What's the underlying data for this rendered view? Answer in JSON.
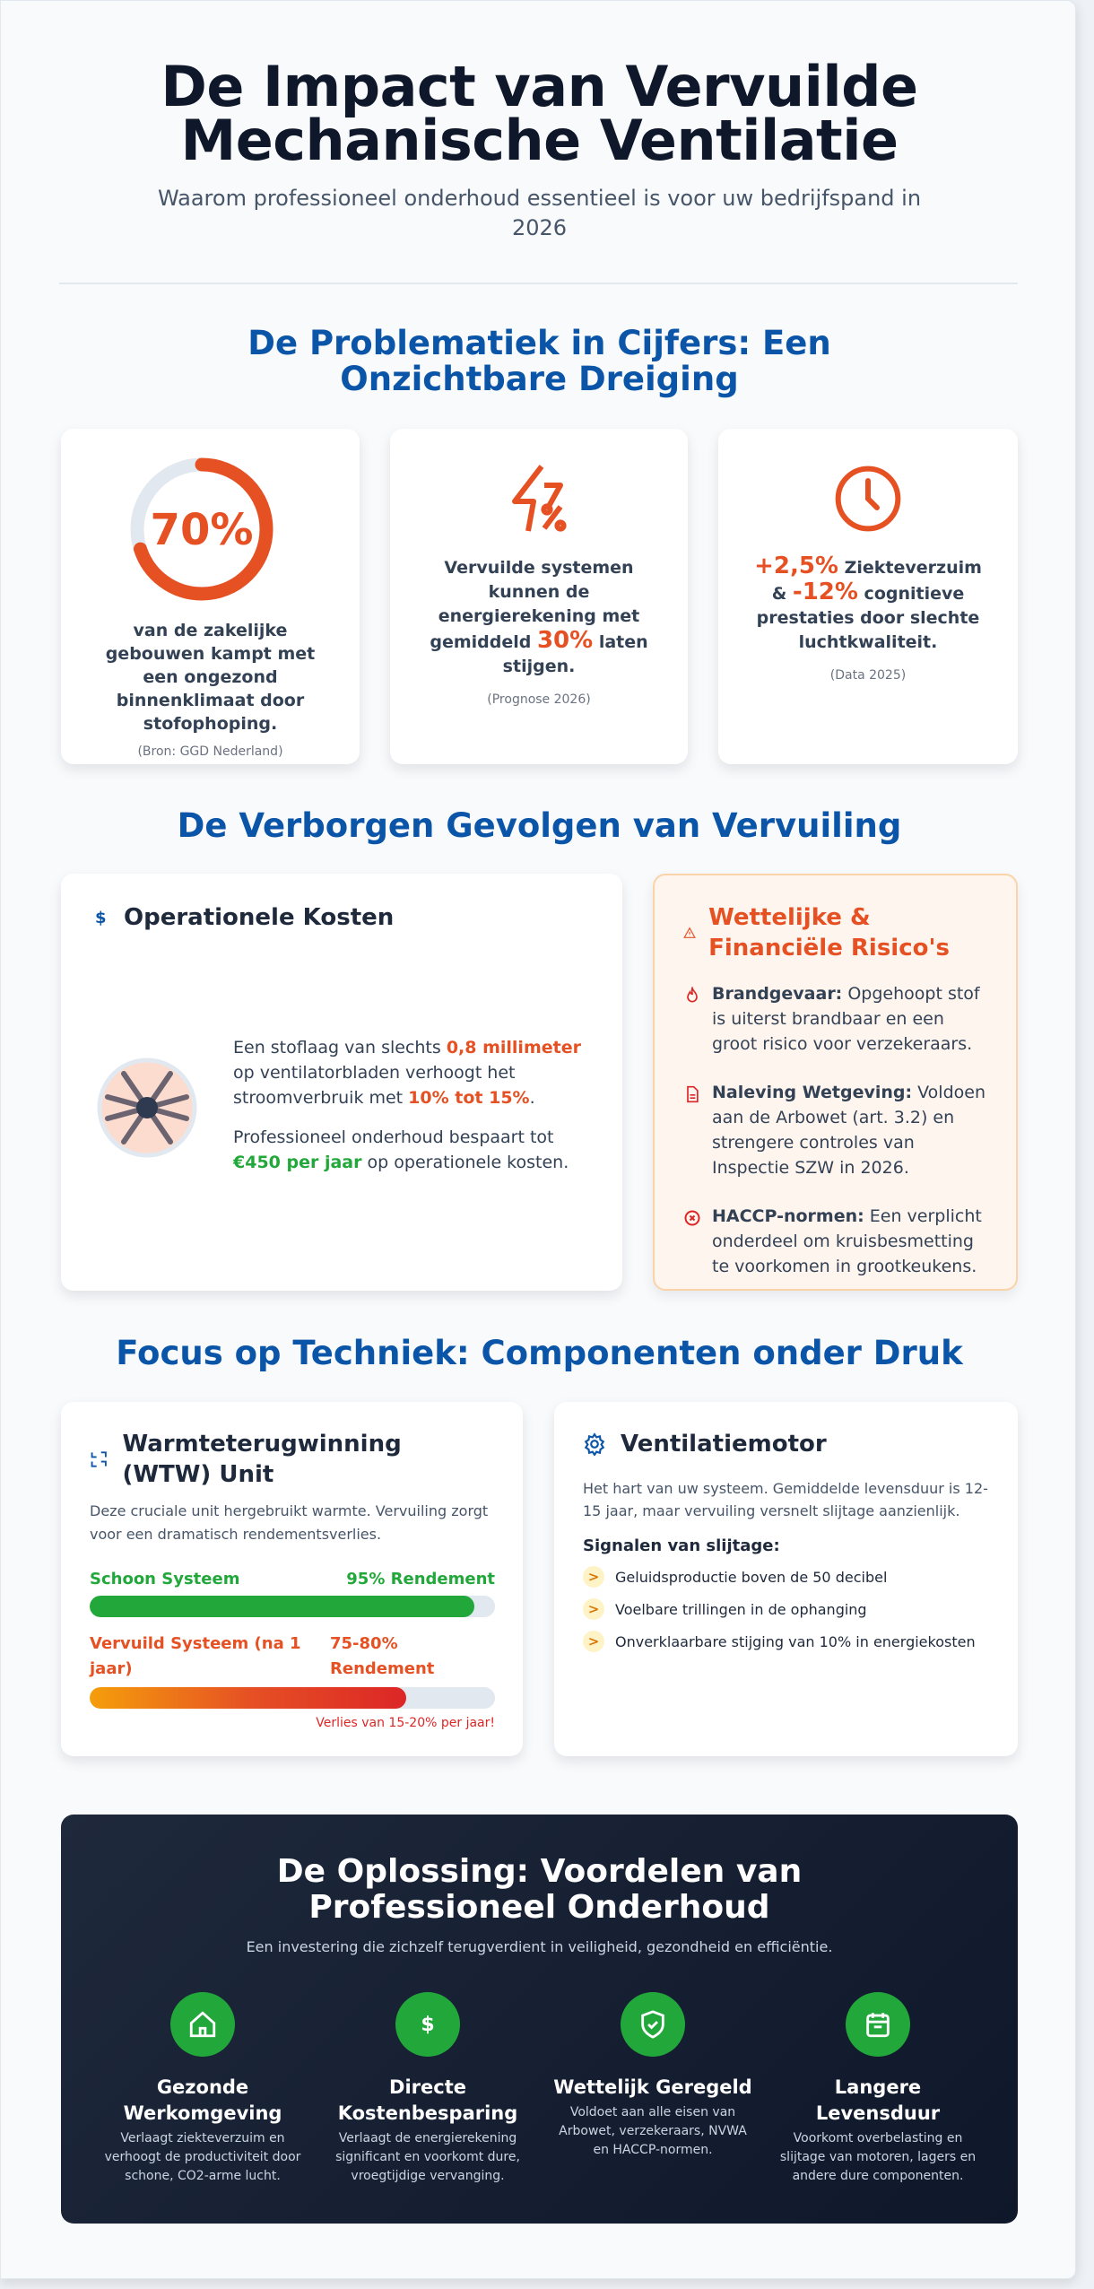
{
  "header": {
    "title": "De Impact van Vervuilde Mechanische Ventilatie",
    "subtitle": "Waarom professioneel onderhoud essentieel is voor uw bedrijfspand in 2026"
  },
  "colors": {
    "accent_orange": "#e65124",
    "heading_blue": "#0b55a8",
    "success_green": "#22a83a",
    "banner_dark": "#0f172a"
  },
  "section1": {
    "title": "De Problematiek in Cijfers: Een Onzichtbare Dreiging",
    "cards": [
      {
        "icon": "donut-70",
        "value": "70%",
        "progress": 0.7,
        "text": "van de zakelijke gebouwen kampt met een ongezond binnenklimaat door stofophoping.",
        "source": "(Bron: GGD Nederland)"
      },
      {
        "icon": "lightning-percent-icon",
        "pre": "Vervuilde systemen kunnen de energierekening met gemiddeld ",
        "value": "30%",
        "post": " laten stijgen.",
        "source": "(Prognose 2026)"
      },
      {
        "icon": "clock-icon",
        "value1": "+2,5%",
        "mid": " Ziekteverzuim & ",
        "value2": "-12%",
        "post": " cognitieve prestaties door slechte luchtkwaliteit.",
        "source": "(Data 2025)"
      }
    ]
  },
  "section2": {
    "title": "De Verborgen Gevolgen van Vervuiling",
    "costs": {
      "icon": "dollar-icon",
      "title": "Operationele Kosten",
      "p1_pre": "Een stoflaag van slechts ",
      "p1_hl1": "0,8 millimeter",
      "p1_mid": " op ventilatorbladen verhoogt het stroomverbruik met ",
      "p1_hl2": "10% tot 15%",
      "p1_post": ".",
      "p2_pre": "Professioneel onderhoud bespaart tot ",
      "p2_hl": "€450 per jaar",
      "p2_post": " op operationele kosten."
    },
    "risks": {
      "icon": "warning-icon",
      "title": "Wettelijke & Financiële Risico's",
      "items": [
        {
          "icon": "fire-icon",
          "label": "Brandgevaar:",
          "text": " Opgehoopt stof is uiterst brandbaar en een groot risico voor verzekeraars."
        },
        {
          "icon": "document-icon",
          "label": "Naleving Wetgeving:",
          "text": " Voldoen aan de Arbowet (art. 3.2) en strengere controles van Inspectie SZW in 2026."
        },
        {
          "icon": "cross-circle-icon",
          "label": "HACCP-normen:",
          "text": " Een verplicht onderdeel om kruisbesmetting te voorkomen in grootkeukens."
        }
      ]
    }
  },
  "section3": {
    "title": "Focus op Techniek: Componenten onder Druk",
    "wtw": {
      "icon": "exchange-icon",
      "title": "Warmteterugwinning (WTW) Unit",
      "desc": "Deze cruciale unit hergebruikt warmte. Vervuiling zorgt voor een dramatisch rendementsverlies.",
      "clean": {
        "label": "Schoon Systeem",
        "value": "95% Rendement",
        "percent": 95
      },
      "dirty": {
        "label": "Vervuild Systeem (na 1 jaar)",
        "value": "75-80% Rendement",
        "percent": 78
      },
      "loss": "Verlies van 15-20% per jaar!"
    },
    "motor": {
      "icon": "gear-icon",
      "title": "Ventilatiemotor",
      "desc": "Het hart van uw systeem. Gemiddelde levensduur is 12-15 jaar, maar vervuiling versnelt slijtage aanzienlijk.",
      "signals_title": "Signalen van slijtage:",
      "signals": [
        "Geluidsproductie boven de 50 decibel",
        "Voelbare trillingen in de ophanging",
        "Onverklaarbare stijging van 10% in energiekosten"
      ]
    }
  },
  "solution": {
    "title": "De Oplossing: Voordelen van Professioneel Onderhoud",
    "subtitle": "Een investering die zichzelf terugverdient in veiligheid, gezondheid en efficiëntie.",
    "features": [
      {
        "icon": "home-icon",
        "title": "Gezonde Werkomgeving",
        "desc": "Verlaagt ziekteverzuim en verhoogt de productiviteit door schone, CO2-arme lucht."
      },
      {
        "icon": "dollar-icon",
        "title": "Directe Kostenbesparing",
        "desc": "Verlaagt de energierekening significant en voorkomt dure, vroegtijdige vervanging."
      },
      {
        "icon": "shield-check-icon",
        "title": "Wettelijk Geregeld",
        "desc": "Voldoet aan alle eisen van Arbowet, verzekeraars, NVWA en HACCP-normen."
      },
      {
        "icon": "calendar-icon",
        "title": "Langere Levensduur",
        "desc": "Voorkomt overbelasting en slijtage van motoren, lagers en andere dure componenten."
      }
    ]
  }
}
